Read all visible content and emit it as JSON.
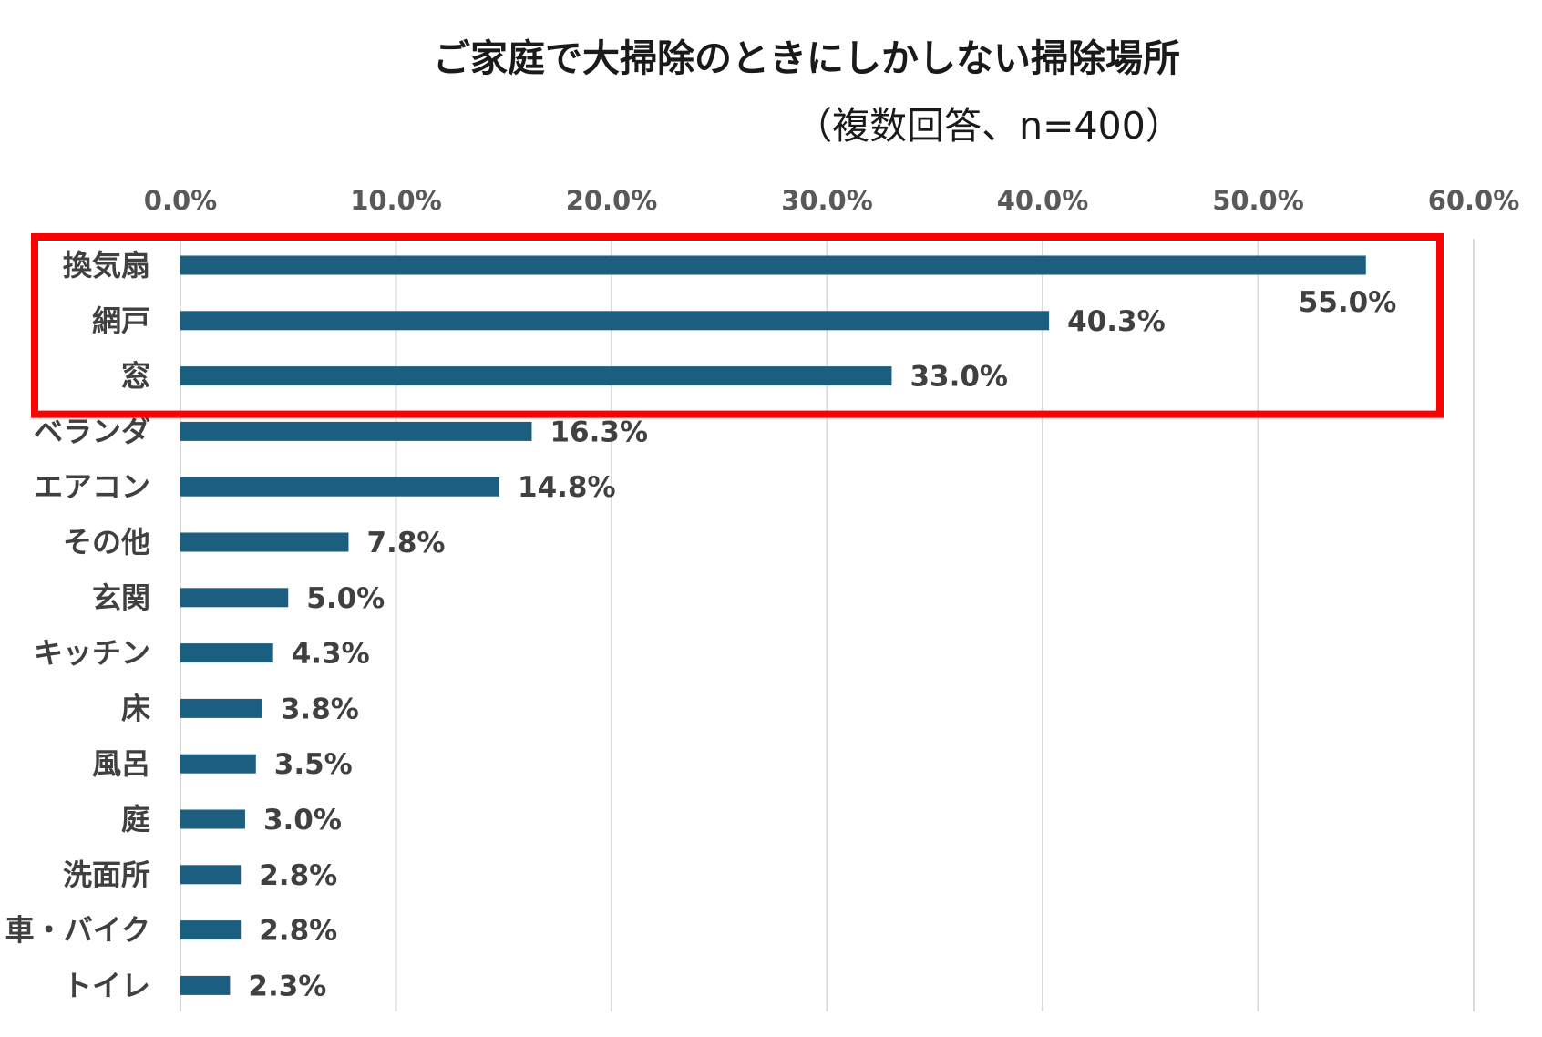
{
  "chart_data": {
    "type": "bar",
    "orientation": "horizontal",
    "title": "ご家庭で大掃除のときにしかしない掃除場所",
    "subtitle": "（複数回答、n=400）",
    "categories": [
      "換気扇",
      "網戸",
      "窓",
      "ベランダ",
      "エアコン",
      "その他",
      "玄関",
      "キッチン",
      "床",
      "風呂",
      "庭",
      "洗面所",
      "車・バイク",
      "トイレ"
    ],
    "values": [
      55.0,
      40.3,
      33.0,
      16.3,
      14.8,
      7.8,
      5.0,
      4.3,
      3.8,
      3.5,
      3.0,
      2.8,
      2.8,
      2.3
    ],
    "value_labels": [
      "55.0%",
      "40.3%",
      "33.0%",
      "16.3%",
      "14.8%",
      "7.8%",
      "5.0%",
      "4.3%",
      "3.8%",
      "3.5%",
      "3.0%",
      "2.8%",
      "2.8%",
      "2.3%"
    ],
    "x_ticks": [
      "0.0%",
      "10.0%",
      "20.0%",
      "30.0%",
      "40.0%",
      "50.0%",
      "60.0%"
    ],
    "xlim": [
      0,
      60
    ],
    "x_axis_position": "top",
    "grid": "vertical",
    "legend": "none",
    "bar_color": "#1b5e80",
    "highlight": {
      "color": "#ff0000",
      "categories": [
        "換気扇",
        "網戸",
        "窓"
      ]
    }
  }
}
